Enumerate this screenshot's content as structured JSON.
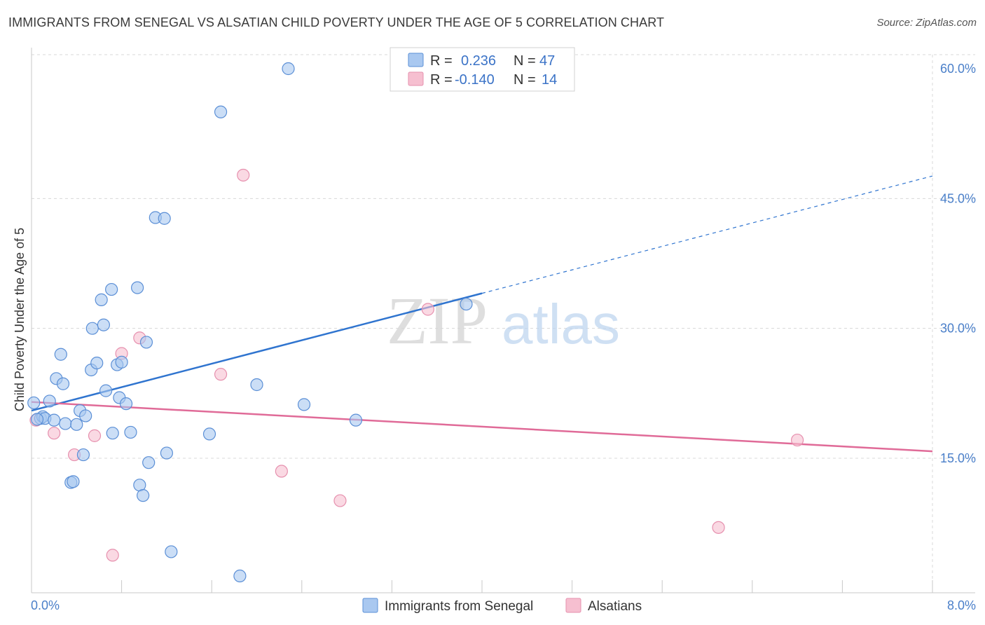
{
  "title": "IMMIGRANTS FROM SENEGAL VS ALSATIAN CHILD POVERTY UNDER THE AGE OF 5 CORRELATION CHART",
  "source": "Source: ZipAtlas.com",
  "watermark": {
    "zip": "ZIP",
    "atlas": "atlas"
  },
  "colors": {
    "senegal_fill": "#a9c8f0",
    "senegal_stroke": "#5b8fd6",
    "senegal_line": "#2f74cf",
    "alsatian_fill": "#f6bfd0",
    "alsatian_stroke": "#e690ae",
    "alsatian_line": "#e06b98",
    "tick_text": "#4a7fc9",
    "grid": "#d8d8d8"
  },
  "legend": {
    "rows": [
      {
        "r_label": "R =",
        "r_value": "0.236",
        "n_label": "N =",
        "n_value": "47"
      },
      {
        "r_label": "R =",
        "r_value": "-0.140",
        "n_label": "N =",
        "n_value": "14"
      }
    ]
  },
  "chart_data": {
    "type": "scatter",
    "title": "IMMIGRANTS FROM SENEGAL VS ALSATIAN CHILD POVERTY UNDER THE AGE OF 5 CORRELATION CHART",
    "xlabel": "",
    "ylabel": "Child Poverty Under the Age of 5",
    "xlim": [
      0,
      8
    ],
    "ylim": [
      0,
      62
    ],
    "x_tick_labels": [
      "0.0%",
      "8.0%"
    ],
    "y_ticks": [
      15,
      30,
      45,
      60
    ],
    "y_tick_labels": [
      "15.0%",
      "30.0%",
      "45.0%",
      "60.0%"
    ],
    "series": [
      {
        "name": "Immigrants from Senegal",
        "r": 0.236,
        "n": 47,
        "points": [
          [
            0.02,
            21.4
          ],
          [
            0.08,
            19.6
          ],
          [
            0.1,
            19.8
          ],
          [
            0.12,
            19.6
          ],
          [
            0.16,
            21.6
          ],
          [
            0.2,
            19.4
          ],
          [
            0.22,
            24.2
          ],
          [
            0.26,
            27.0
          ],
          [
            0.28,
            23.6
          ],
          [
            0.3,
            19.0
          ],
          [
            0.35,
            12.2
          ],
          [
            0.37,
            12.3
          ],
          [
            0.4,
            18.9
          ],
          [
            0.43,
            20.5
          ],
          [
            0.46,
            15.4
          ],
          [
            0.48,
            19.9
          ],
          [
            0.53,
            25.2
          ],
          [
            0.54,
            30.0
          ],
          [
            0.58,
            26.0
          ],
          [
            0.62,
            33.3
          ],
          [
            0.64,
            30.4
          ],
          [
            0.66,
            22.8
          ],
          [
            0.71,
            34.5
          ],
          [
            0.72,
            17.9
          ],
          [
            0.76,
            25.8
          ],
          [
            0.78,
            22.0
          ],
          [
            0.8,
            26.1
          ],
          [
            0.84,
            21.3
          ],
          [
            0.88,
            18.0
          ],
          [
            0.94,
            34.7
          ],
          [
            0.96,
            11.9
          ],
          [
            0.99,
            10.7
          ],
          [
            1.02,
            28.4
          ],
          [
            1.04,
            14.5
          ],
          [
            1.1,
            42.8
          ],
          [
            1.18,
            42.7
          ],
          [
            1.2,
            15.6
          ],
          [
            1.24,
            4.2
          ],
          [
            1.58,
            17.8
          ],
          [
            1.68,
            55.0
          ],
          [
            1.85,
            1.4
          ],
          [
            2.0,
            23.5
          ],
          [
            2.28,
            60.0
          ],
          [
            2.42,
            21.2
          ],
          [
            2.88,
            19.4
          ],
          [
            3.86,
            32.8
          ],
          [
            0.05,
            19.5
          ]
        ]
      },
      {
        "name": "Alsatians",
        "r": -0.14,
        "n": 14,
        "points": [
          [
            0.04,
            19.4
          ],
          [
            0.2,
            17.9
          ],
          [
            0.38,
            15.4
          ],
          [
            0.56,
            17.6
          ],
          [
            0.72,
            3.8
          ],
          [
            0.8,
            27.1
          ],
          [
            0.96,
            28.9
          ],
          [
            1.68,
            24.7
          ],
          [
            1.88,
            47.7
          ],
          [
            2.22,
            13.5
          ],
          [
            2.74,
            10.1
          ],
          [
            3.52,
            32.2
          ],
          [
            6.1,
            7.0
          ],
          [
            6.8,
            17.1
          ]
        ]
      }
    ],
    "trendlines": [
      {
        "series": "Immigrants from Senegal",
        "x0": 0.0,
        "y0": 20.5,
        "x1": 8.0,
        "y1": 47.6,
        "solid_until_x": 4.0
      },
      {
        "series": "Alsatians",
        "x0": 0.0,
        "y0": 21.5,
        "x1": 8.0,
        "y1": 15.8
      }
    ],
    "legend_position": "top-center",
    "grid": true
  }
}
